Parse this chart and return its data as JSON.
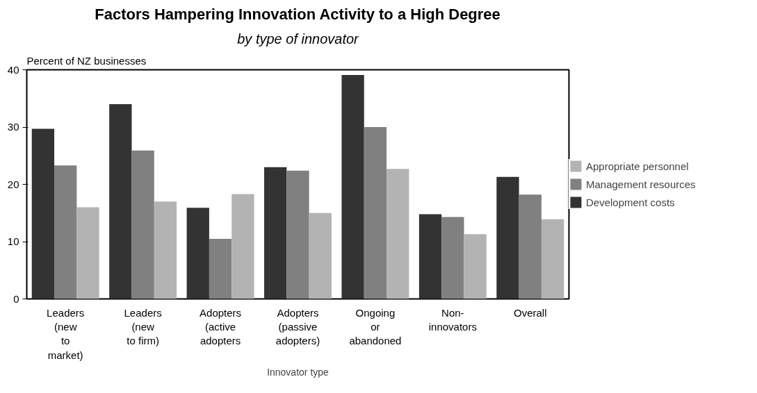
{
  "chart_data": {
    "type": "bar",
    "title": "Factors Hampering Innovation Activity to a High Degree",
    "subtitle": "by type of innovator",
    "xlabel": "Innovator type",
    "ylabel": "Percent of NZ businesses",
    "categories": [
      "Leaders\n(new\nto\nmarket)",
      "Leaders\n(new\nto firm)",
      "Adopters\n(active\nadopters",
      "Adopters\n(passive\nadopters)",
      "Ongoing\nor\nabandoned",
      "Non-\ninnovators",
      "Overall"
    ],
    "series": [
      {
        "name": "Development costs",
        "color": "#333333",
        "values": [
          29.7,
          34,
          15.9,
          23,
          39.1,
          14.8,
          21.3
        ]
      },
      {
        "name": "Management resources",
        "color": "#808080",
        "values": [
          23.3,
          25.9,
          10.5,
          22.4,
          30,
          14.3,
          18.2
        ]
      },
      {
        "name": "Appropriate personnel",
        "color": "#b3b3b3",
        "values": [
          16,
          17,
          18.3,
          15,
          22.7,
          11.3,
          13.9
        ]
      }
    ],
    "ylim": [
      0,
      40
    ],
    "yticks": [
      0,
      10,
      20,
      30,
      40
    ],
    "grid": false,
    "legend": "right"
  }
}
